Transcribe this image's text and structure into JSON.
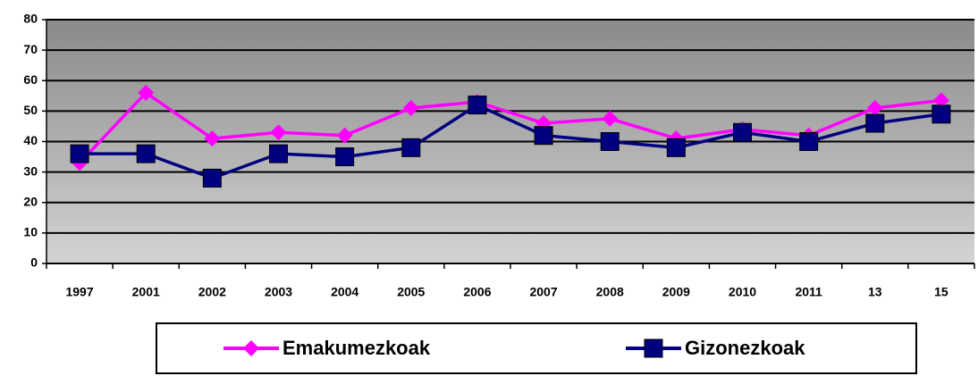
{
  "chart_data": {
    "type": "line",
    "categories": [
      "1997",
      "2001",
      "2002",
      "2003",
      "2004",
      "2005",
      "2006",
      "2007",
      "2008",
      "2009",
      "2010",
      "2011",
      "13",
      "15"
    ],
    "series": [
      {
        "name": "Emakumezkoak",
        "color": "#ff00ff",
        "marker": "diamond",
        "values": [
          33,
          56,
          41,
          43,
          42,
          51,
          53,
          46,
          47.5,
          41,
          44,
          42,
          51,
          53.5
        ]
      },
      {
        "name": "Gizonezkoak",
        "color": "#000080",
        "marker": "square",
        "values": [
          36,
          36,
          28,
          36,
          35,
          38,
          52,
          42,
          40,
          38,
          43,
          40,
          46,
          49
        ]
      }
    ],
    "ylim": [
      0,
      80
    ],
    "yticks": [
      0,
      10,
      20,
      30,
      40,
      50,
      60,
      70,
      80
    ],
    "grid": true,
    "legend": "bottom"
  }
}
